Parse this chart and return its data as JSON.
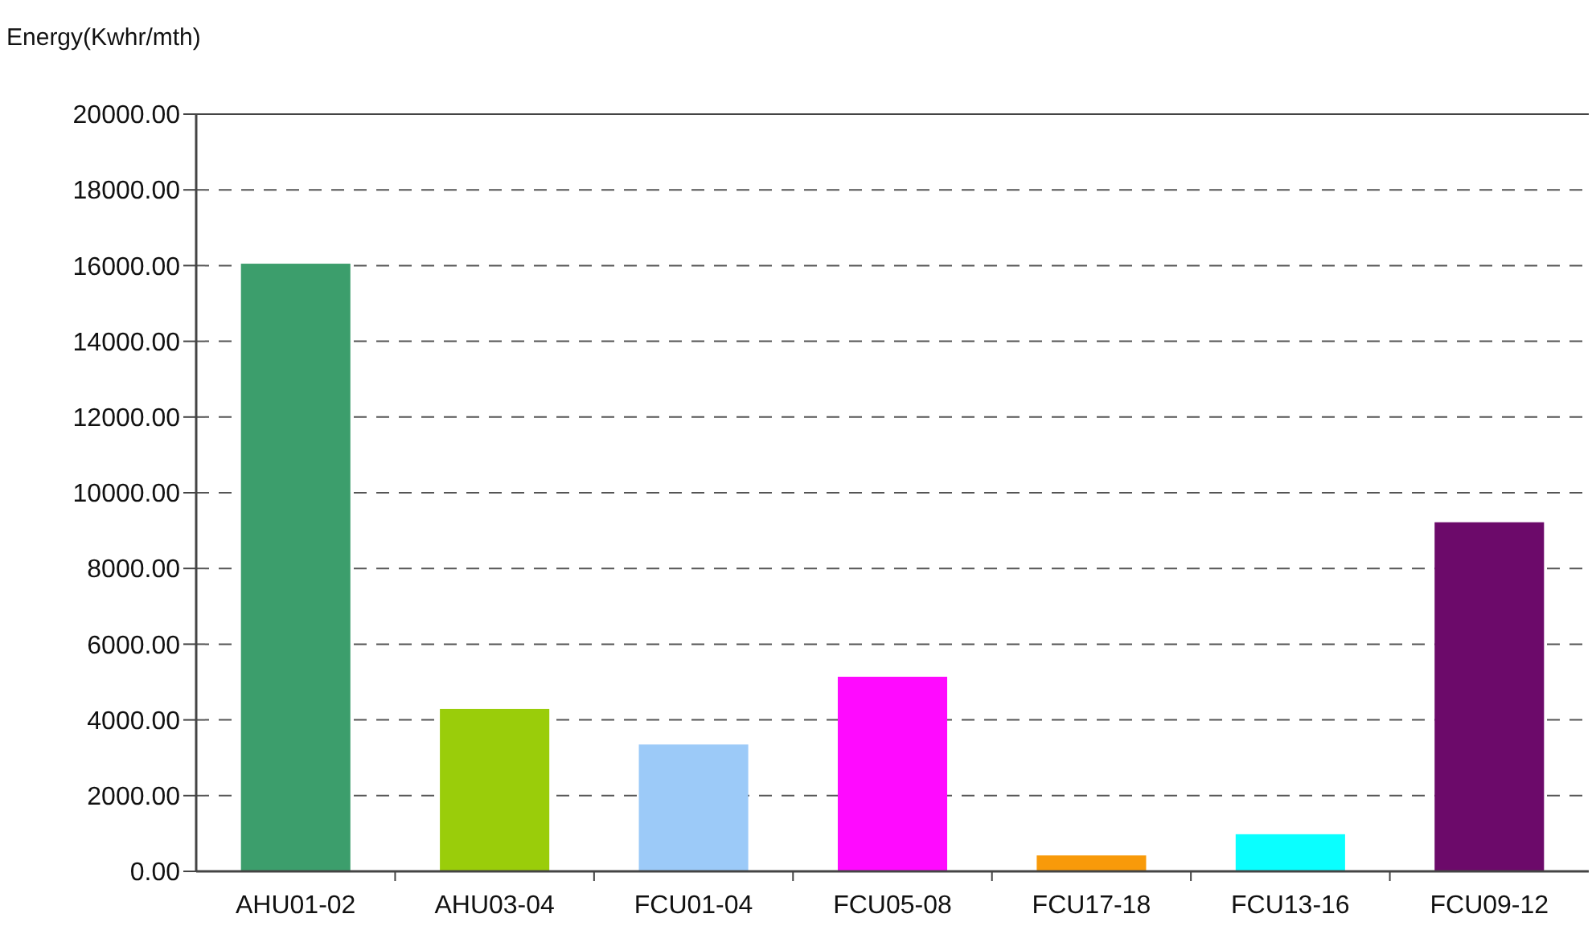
{
  "chart_data": {
    "type": "bar",
    "ylabel": "Energy(Kwhr/mth)",
    "categories": [
      "AHU01-02",
      "AHU03-04",
      "FCU01-04",
      "FCU05-08",
      "FCU17-18",
      "FCU13-16",
      "FCU09-12"
    ],
    "values": [
      16050,
      4290,
      3350,
      5140,
      420,
      980,
      9220
    ],
    "colors": [
      "#3c9e6c",
      "#9acd0a",
      "#9ccaf8",
      "#ff0aff",
      "#f89a0a",
      "#0affff",
      "#6c0a6a"
    ],
    "ylim": [
      0,
      20000
    ],
    "yticks": [
      {
        "value": 0,
        "label": "0.00"
      },
      {
        "value": 2000,
        "label": "2000.00"
      },
      {
        "value": 4000,
        "label": "4000.00"
      },
      {
        "value": 6000,
        "label": "6000.00"
      },
      {
        "value": 8000,
        "label": "8000.00"
      },
      {
        "value": 10000,
        "label": "10000.00"
      },
      {
        "value": 12000,
        "label": "12000.00"
      },
      {
        "value": 14000,
        "label": "14000.00"
      },
      {
        "value": 16000,
        "label": "16000.00"
      },
      {
        "value": 18000,
        "label": "18000.00"
      },
      {
        "value": 20000,
        "label": "20000.00"
      }
    ],
    "grid": "y"
  }
}
